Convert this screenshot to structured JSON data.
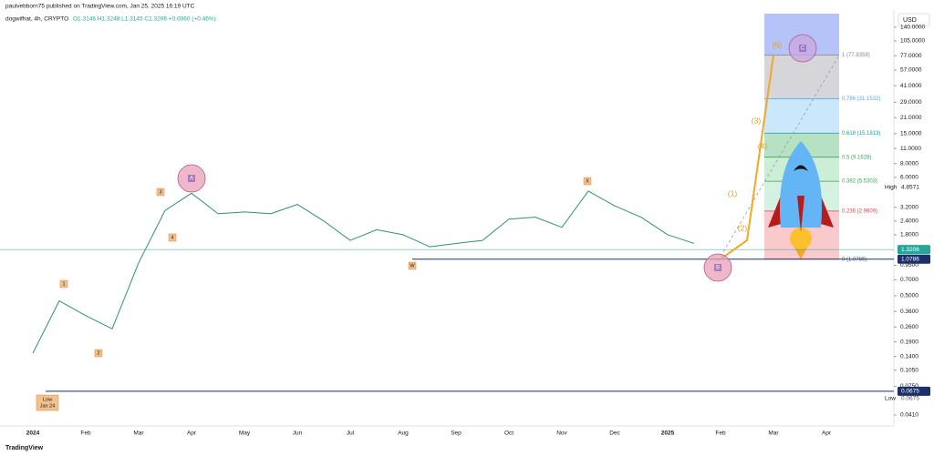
{
  "header": {
    "publisher": "paulvebborn75 published on TradingView.com, Jan 25, 2025 16:19 UTC",
    "footer": "TradingView"
  },
  "chart_data": {
    "type": "line",
    "title": "dogwifhat, 4h, CRYPTO",
    "ohlc": "O1.3146 H1.3248 L1.3145 C1.3206 +0.0060 (+0.46%)",
    "currency": "USD",
    "log_scale": true,
    "categories": [
      "2024",
      null,
      "Feb",
      null,
      "Mar",
      null,
      "Apr",
      null,
      "May",
      null,
      "Jun",
      null,
      "Jul",
      null,
      "Aug",
      null,
      "Sep",
      null,
      "Oct",
      null,
      "Nov",
      null,
      "Dec",
      null,
      "2025",
      null,
      "Feb",
      null,
      "Mar",
      null,
      "Apr"
    ],
    "series": [
      {
        "color": "#2f8f7d",
        "values": [
          0.15,
          0.45,
          0.33,
          0.25,
          1.0,
          3.0,
          4.3,
          2.8,
          2.9,
          2.8,
          3.4,
          2.4,
          1.6,
          2.0,
          1.8,
          1.4,
          1.5,
          1.6,
          2.5,
          2.6,
          2.1,
          4.5,
          3.3,
          2.6,
          1.8,
          1.5,
          null,
          null,
          null,
          null,
          null
        ]
      },
      {
        "color": "#f5a623",
        "values": [
          null,
          null,
          null,
          null,
          null,
          null,
          null,
          null,
          null,
          null,
          null,
          null,
          null,
          null,
          null,
          null,
          null,
          null,
          null,
          null,
          null,
          null,
          null,
          null,
          null,
          null,
          1.0786,
          1.6,
          77.8358,
          null,
          null
        ]
      }
    ],
    "ylim": [
      0.0326,
      186
    ],
    "yticks": [
      {
        "value": 140,
        "label": "140.0000"
      },
      {
        "value": 105,
        "label": "105.0000"
      },
      {
        "value": 77,
        "label": "77.0000"
      },
      {
        "value": 57,
        "label": "57.0000"
      },
      {
        "value": 41,
        "label": "41.0000"
      },
      {
        "value": 29,
        "label": "29.0000"
      },
      {
        "value": 21,
        "label": "21.0000"
      },
      {
        "value": 15,
        "label": "15.0000"
      },
      {
        "value": 11,
        "label": "11.0000"
      },
      {
        "value": 8,
        "label": "8.0000"
      },
      {
        "value": 6,
        "label": "6.0000"
      },
      {
        "value": 3.2,
        "label": "3.2000"
      },
      {
        "value": 2.4,
        "label": "2.4000"
      },
      {
        "value": 1.8,
        "label": "1.8000"
      },
      {
        "value": 0.95,
        "label": "0.9500"
      },
      {
        "value": 0.7,
        "label": "0.7000"
      },
      {
        "value": 0.5,
        "label": "0.5000"
      },
      {
        "value": 0.36,
        "label": "0.3600"
      },
      {
        "value": 0.26,
        "label": "0.2600"
      },
      {
        "value": 0.19,
        "label": "0.1900"
      },
      {
        "value": 0.14,
        "label": "0.1400"
      },
      {
        "value": 0.105,
        "label": "0.1050"
      },
      {
        "value": 0.075,
        "label": "0.0750"
      },
      {
        "value": 0.041,
        "label": "0.0410"
      }
    ],
    "fib_levels": [
      {
        "value": 1.0786,
        "label": "0 (1.0786)",
        "color": "#f8c0c3",
        "text_color": "#5b6b99"
      },
      {
        "value": 2.9609,
        "label": "0.236 (2.9609)",
        "color": "#cdeedd",
        "text_color": "#e0454d"
      },
      {
        "value": 5.5303,
        "label": "0.382 (5.5303)",
        "color": "#c4ebcf",
        "text_color": "#3fa35b"
      },
      {
        "value": 9.1628,
        "label": "0.5 (9.1628)",
        "color": "#a9ddb8",
        "text_color": "#3fa35b"
      },
      {
        "value": 15.1813,
        "label": "0.618 (15.1813)",
        "color": "#c2e3fb",
        "text_color": "#18a0a0"
      },
      {
        "value": 31.1532,
        "label": "0.786 (31.1532)",
        "color": "#cfcfd3",
        "text_color": "#5aa9e6"
      },
      {
        "value": 77.8358,
        "label": "1 (77.8358)",
        "color": "#a9b8f7",
        "text_color": "#888888"
      }
    ],
    "price_labels": [
      {
        "value": 1.3206,
        "color": "#26a69a"
      },
      {
        "value": 1.0786,
        "color": "#1c2e6b"
      },
      {
        "value": 0.0675,
        "color": "#1c2e6b"
      }
    ],
    "high": {
      "name": "High",
      "value": 4.8571
    },
    "low": {
      "name": "Low",
      "value": 0.0675
    },
    "wave_labels": [
      "A",
      "B",
      "C",
      "(1)",
      "(2)",
      "(3)",
      "(4)",
      "(5)",
      "1",
      "2",
      "3",
      "4",
      "W",
      "X"
    ],
    "low_note": [
      "Low",
      "Jan 24"
    ]
  }
}
